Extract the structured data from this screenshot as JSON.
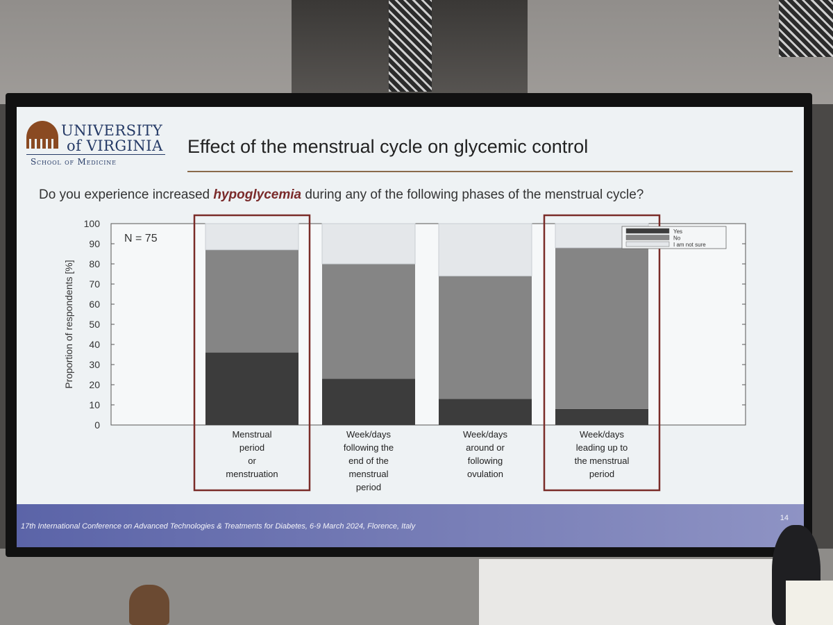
{
  "slide": {
    "logo_line1": "UNIVERSITY",
    "logo_line2": "of VIRGINIA",
    "logo_sub": "School of Medicine",
    "title": "Effect of the menstrual cycle on glycemic control",
    "question_before": "Do you experience increased ",
    "question_emph": "hypoglycemia",
    "question_after": " during any of the following phases of the menstrual cycle?",
    "footer": "17th International Conference on Advanced Technologies & Treatments for Diabetes, 6-9 March 2024, Florence, Italy",
    "page_number": "14"
  },
  "chart_data": {
    "type": "bar",
    "stacked": true,
    "annotation": "N = 75",
    "ylabel": "Proportion of respondents [%]",
    "xlabel": "",
    "ylim": [
      0,
      100
    ],
    "yticks": [
      0,
      10,
      20,
      30,
      40,
      50,
      60,
      70,
      80,
      90,
      100
    ],
    "grid": false,
    "legend_position": "top-right",
    "categories": [
      [
        "Menstrual",
        "period",
        "or",
        "menstruation"
      ],
      [
        "Week/days",
        "following the",
        "end of the",
        "menstrual",
        "period"
      ],
      [
        "Week/days",
        "around or",
        "following",
        "ovulation"
      ],
      [
        "Week/days",
        "leading up to",
        "the menstrual",
        "period"
      ]
    ],
    "series": [
      {
        "name": "Yes",
        "color": "#3c3c3c",
        "values": [
          36,
          23,
          13,
          8
        ]
      },
      {
        "name": "No",
        "color": "#858585",
        "values": [
          51,
          57,
          61,
          80
        ]
      },
      {
        "name": "I am not sure",
        "color": "#e4e7ea",
        "values": [
          13,
          20,
          26,
          12
        ]
      }
    ],
    "highlighted_categories": [
      0,
      3
    ],
    "highlight_color": "#7a2c28"
  }
}
